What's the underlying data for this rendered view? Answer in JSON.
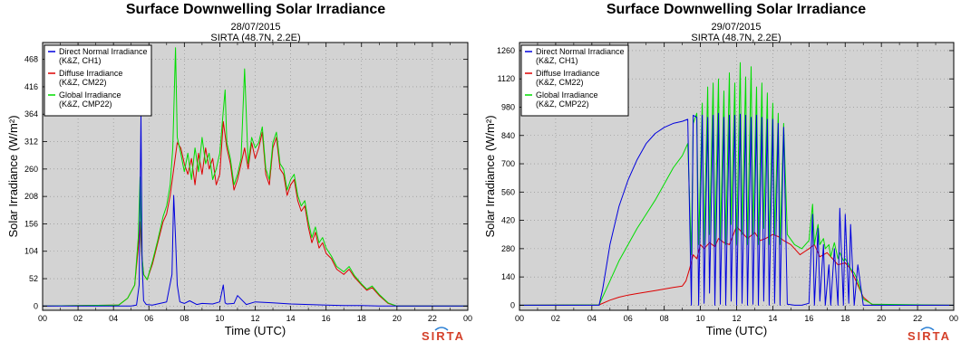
{
  "chart_data": [
    {
      "type": "line",
      "title": "Surface Downwelling Solar Irradiance",
      "subtitle": "28/07/2015",
      "site": "SIRTA (48.7N, 2.2E)",
      "xlabel": "Time (UTC)",
      "ylabel": "Solar Irradiance (W/m²)",
      "x_ticks": [
        "00",
        "02",
        "04",
        "06",
        "08",
        "10",
        "12",
        "14",
        "16",
        "18",
        "20",
        "22",
        "00"
      ],
      "y_ticks": [
        0,
        52,
        104,
        156,
        208,
        260,
        312,
        364,
        416,
        468
      ],
      "xlim": [
        0,
        24
      ],
      "ylim": [
        -8,
        500
      ],
      "grid": true,
      "legend_position": "top-left",
      "logo": "SIRTA",
      "series": [
        {
          "name": "Direct Normal Irradiance",
          "detail": "(K&Z, CH1)",
          "color": "#0000dd",
          "x": [
            0,
            5.0,
            5.3,
            5.45,
            5.55,
            5.62,
            5.7,
            5.85,
            6.2,
            7.0,
            7.3,
            7.4,
            7.5,
            7.6,
            7.75,
            8.0,
            8.3,
            8.7,
            9.0,
            9.6,
            10.0,
            10.2,
            10.3,
            10.4,
            10.8,
            11.0,
            11.5,
            12.0,
            13.0,
            14.0,
            15.0,
            16.0,
            17.0,
            18.0,
            19.0,
            19.5,
            24
          ],
          "y": [
            0,
            0,
            2,
            40,
            365,
            80,
            10,
            3,
            2,
            8,
            60,
            210,
            130,
            40,
            8,
            5,
            10,
            3,
            5,
            4,
            8,
            40,
            6,
            4,
            5,
            20,
            3,
            8,
            6,
            4,
            3,
            2,
            1,
            1,
            0,
            0,
            0
          ]
        },
        {
          "name": "Diffuse Irradiance",
          "detail": "(K&Z, CM22)",
          "color": "#dd0000",
          "x": [
            0,
            4.3,
            4.8,
            5.2,
            5.4,
            5.5,
            5.6,
            5.7,
            5.9,
            6.2,
            6.5,
            6.8,
            7.0,
            7.2,
            7.4,
            7.6,
            7.8,
            8.0,
            8.2,
            8.4,
            8.6,
            8.8,
            9.0,
            9.2,
            9.4,
            9.6,
            9.8,
            10.0,
            10.2,
            10.4,
            10.6,
            10.8,
            11.0,
            11.2,
            11.4,
            11.6,
            11.8,
            12.0,
            12.2,
            12.4,
            12.6,
            12.8,
            13.0,
            13.2,
            13.4,
            13.6,
            13.8,
            14.0,
            14.2,
            14.4,
            14.6,
            14.8,
            15.0,
            15.2,
            15.4,
            15.6,
            15.8,
            16.0,
            16.3,
            16.6,
            17.0,
            17.3,
            17.6,
            18.0,
            18.3,
            18.6,
            19.0,
            19.5,
            20,
            24
          ],
          "y": [
            0,
            2,
            15,
            40,
            110,
            160,
            95,
            60,
            50,
            80,
            120,
            160,
            175,
            210,
            260,
            310,
            300,
            270,
            250,
            280,
            230,
            290,
            250,
            300,
            260,
            280,
            230,
            250,
            350,
            300,
            270,
            220,
            240,
            270,
            300,
            260,
            310,
            280,
            300,
            330,
            250,
            230,
            300,
            320,
            260,
            250,
            210,
            230,
            240,
            200,
            180,
            190,
            150,
            120,
            140,
            110,
            120,
            100,
            90,
            70,
            60,
            70,
            55,
            40,
            30,
            35,
            20,
            5,
            0,
            0
          ]
        },
        {
          "name": "Global Irradiance",
          "detail": "(K&Z, CMP22)",
          "color": "#00dd00",
          "x": [
            0,
            4.3,
            4.8,
            5.2,
            5.4,
            5.5,
            5.6,
            5.7,
            5.9,
            6.2,
            6.5,
            6.8,
            7.0,
            7.2,
            7.35,
            7.5,
            7.6,
            7.8,
            8.0,
            8.2,
            8.4,
            8.6,
            8.8,
            9.0,
            9.2,
            9.4,
            9.6,
            9.8,
            10.0,
            10.2,
            10.3,
            10.4,
            10.6,
            10.8,
            11.0,
            11.2,
            11.4,
            11.6,
            11.8,
            12.0,
            12.2,
            12.4,
            12.6,
            12.8,
            13.0,
            13.2,
            13.4,
            13.6,
            13.8,
            14.0,
            14.2,
            14.4,
            14.6,
            14.8,
            15.0,
            15.2,
            15.4,
            15.6,
            15.8,
            16.0,
            16.3,
            16.6,
            17.0,
            17.3,
            17.6,
            18.0,
            18.3,
            18.6,
            19.0,
            19.5,
            20,
            24
          ],
          "y": [
            0,
            2,
            15,
            40,
            130,
            245,
            100,
            60,
            50,
            85,
            125,
            170,
            190,
            230,
            300,
            490,
            320,
            290,
            255,
            290,
            240,
            300,
            255,
            320,
            270,
            290,
            240,
            260,
            290,
            370,
            410,
            310,
            280,
            230,
            250,
            280,
            450,
            270,
            320,
            300,
            310,
            340,
            260,
            240,
            310,
            330,
            270,
            260,
            220,
            240,
            250,
            210,
            190,
            200,
            160,
            130,
            150,
            120,
            130,
            110,
            95,
            75,
            65,
            75,
            58,
            42,
            32,
            38,
            22,
            6,
            0,
            0
          ]
        }
      ]
    },
    {
      "type": "line",
      "title": "Surface Downwelling Solar Irradiance",
      "subtitle": "29/07/2015",
      "site": "SIRTA (48.7N, 2.2E)",
      "xlabel": "Time (UTC)",
      "ylabel": "Solar Irradiance (W/m²)",
      "x_ticks": [
        "00",
        "02",
        "04",
        "06",
        "08",
        "10",
        "12",
        "14",
        "16",
        "18",
        "20",
        "22",
        "00"
      ],
      "y_ticks": [
        0,
        140,
        280,
        420,
        560,
        700,
        840,
        980,
        1120,
        1260
      ],
      "xlim": [
        0,
        24
      ],
      "ylim": [
        -25,
        1300
      ],
      "grid": true,
      "legend_position": "top-left",
      "logo": "SIRTA",
      "series": [
        {
          "name": "Direct Normal Irradiance",
          "detail": "(K&Z, CH1)",
          "color": "#0000dd",
          "x": [
            0,
            4.4,
            4.6,
            5.0,
            5.5,
            6.0,
            6.5,
            7.0,
            7.5,
            8.0,
            8.5,
            9.0,
            9.3,
            9.5,
            9.6,
            9.8,
            9.9,
            10.1,
            10.2,
            10.4,
            10.5,
            10.7,
            10.8,
            11.0,
            11.1,
            11.3,
            11.4,
            11.6,
            11.7,
            11.9,
            12.0,
            12.2,
            12.3,
            12.5,
            12.6,
            12.8,
            12.9,
            13.1,
            13.2,
            13.4,
            13.5,
            13.7,
            13.8,
            14.0,
            14.1,
            14.3,
            14.4,
            14.6,
            14.8,
            15.2,
            15.6,
            16.0,
            16.2,
            16.3,
            16.5,
            16.6,
            16.8,
            16.9,
            17.1,
            17.2,
            17.4,
            17.6,
            17.7,
            17.9,
            18.0,
            18.2,
            18.3,
            18.5,
            18.7,
            19.0,
            19.5,
            24
          ],
          "y": [
            0,
            0,
            80,
            300,
            490,
            620,
            720,
            800,
            850,
            880,
            900,
            910,
            920,
            0,
            940,
            930,
            0,
            940,
            10,
            930,
            60,
            940,
            0,
            950,
            5,
            930,
            0,
            940,
            20,
            940,
            0,
            945,
            10,
            940,
            0,
            930,
            5,
            940,
            0,
            930,
            20,
            920,
            0,
            920,
            10,
            900,
            0,
            880,
            5,
            0,
            0,
            10,
            450,
            0,
            380,
            20,
            300,
            0,
            200,
            0,
            280,
            0,
            480,
            0,
            450,
            10,
            400,
            0,
            200,
            0,
            0,
            0
          ]
        },
        {
          "name": "Diffuse Irradiance",
          "detail": "(K&Z, CM22)",
          "color": "#dd0000",
          "x": [
            0,
            4.4,
            5.0,
            5.5,
            6.0,
            6.5,
            7.0,
            7.5,
            8.0,
            8.5,
            9.0,
            9.2,
            9.4,
            9.6,
            9.8,
            10.0,
            10.2,
            10.5,
            10.8,
            11.0,
            11.3,
            11.6,
            12.0,
            12.3,
            12.6,
            13.0,
            13.3,
            13.6,
            14.0,
            14.3,
            14.6,
            15.0,
            15.5,
            16.0,
            16.3,
            16.6,
            17.0,
            17.3,
            17.6,
            18.0,
            18.3,
            18.6,
            19.0,
            19.5,
            24
          ],
          "y": [
            0,
            2,
            25,
            40,
            50,
            58,
            65,
            72,
            80,
            88,
            95,
            120,
            180,
            250,
            230,
            300,
            280,
            310,
            290,
            330,
            310,
            300,
            390,
            360,
            330,
            360,
            320,
            330,
            350,
            340,
            320,
            300,
            250,
            280,
            300,
            240,
            260,
            230,
            200,
            210,
            180,
            120,
            40,
            2,
            0
          ]
        },
        {
          "name": "Global Irradiance",
          "detail": "(K&Z, CMP22)",
          "color": "#00dd00",
          "x": [
            0,
            4.4,
            5.0,
            5.5,
            6.0,
            6.5,
            7.0,
            7.5,
            8.0,
            8.5,
            9.0,
            9.3,
            9.5,
            9.6,
            9.8,
            9.9,
            10.1,
            10.2,
            10.4,
            10.5,
            10.7,
            10.8,
            11.0,
            11.1,
            11.3,
            11.4,
            11.6,
            11.7,
            11.9,
            12.0,
            12.2,
            12.3,
            12.5,
            12.6,
            12.8,
            12.9,
            13.1,
            13.2,
            13.4,
            13.5,
            13.7,
            13.8,
            14.0,
            14.1,
            14.3,
            14.4,
            14.6,
            14.8,
            15.2,
            15.6,
            16.0,
            16.2,
            16.3,
            16.5,
            16.6,
            16.8,
            16.9,
            17.1,
            17.2,
            17.4,
            17.6,
            17.7,
            17.9,
            18.0,
            18.2,
            18.3,
            18.5,
            18.7,
            19.0,
            19.5,
            24
          ],
          "y": [
            0,
            2,
            120,
            220,
            300,
            380,
            450,
            520,
            600,
            680,
            740,
            800,
            250,
            900,
            950,
            300,
            1000,
            300,
            1080,
            350,
            1100,
            300,
            1120,
            320,
            1060,
            300,
            1150,
            400,
            1100,
            300,
            1200,
            350,
            1130,
            300,
            1180,
            350,
            1080,
            300,
            1100,
            380,
            1050,
            300,
            1000,
            350,
            950,
            300,
            900,
            350,
            300,
            280,
            320,
            500,
            300,
            400,
            300,
            330,
            280,
            300,
            240,
            310,
            230,
            260,
            220,
            230,
            200,
            180,
            160,
            120,
            30,
            5,
            0
          ]
        }
      ]
    }
  ]
}
